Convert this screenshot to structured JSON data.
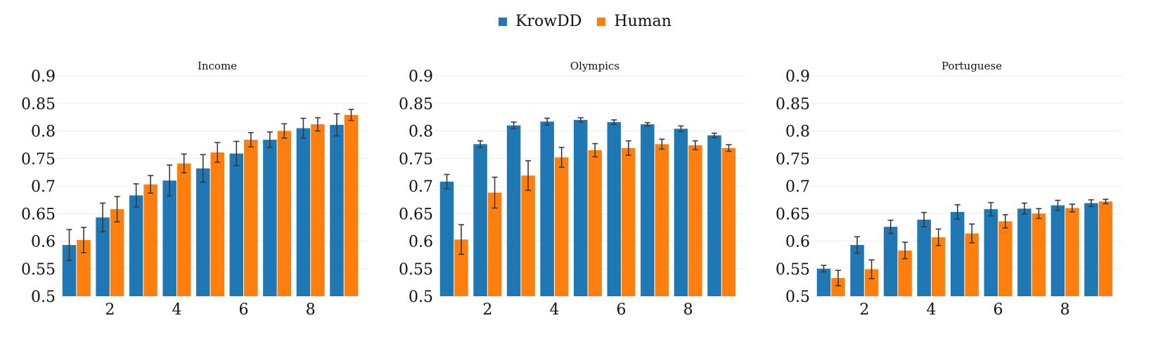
{
  "legend": {
    "items": [
      {
        "label": "KrowDD",
        "color": "#1f77b4"
      },
      {
        "label": "Human",
        "color": "#ff7f0e"
      }
    ]
  },
  "chart_data": [
    {
      "type": "bar",
      "title": "Income",
      "x": [
        1,
        2,
        3,
        4,
        5,
        6,
        7,
        8,
        9
      ],
      "xticks": [
        "2",
        "4",
        "6",
        "8"
      ],
      "ylim": [
        0.5,
        0.9
      ],
      "yticks": [
        "0.5",
        "0.55",
        "0.6",
        "0.65",
        "0.7",
        "0.75",
        "0.8",
        "0.85",
        "0.9"
      ],
      "grid": true,
      "series": [
        {
          "name": "KrowDD",
          "color": "#1f77b4",
          "values": [
            0.593,
            0.643,
            0.683,
            0.71,
            0.732,
            0.759,
            0.784,
            0.805,
            0.811
          ],
          "errors": [
            0.028,
            0.026,
            0.021,
            0.028,
            0.025,
            0.022,
            0.014,
            0.018,
            0.02
          ]
        },
        {
          "name": "Human",
          "color": "#ff7f0e",
          "values": [
            0.602,
            0.658,
            0.703,
            0.741,
            0.761,
            0.784,
            0.8,
            0.812,
            0.829
          ],
          "errors": [
            0.023,
            0.023,
            0.016,
            0.017,
            0.018,
            0.013,
            0.013,
            0.012,
            0.01
          ]
        }
      ]
    },
    {
      "type": "bar",
      "title": "Olympics",
      "x": [
        1,
        2,
        3,
        4,
        5,
        6,
        7,
        8,
        9
      ],
      "xticks": [
        "2",
        "4",
        "6",
        "8"
      ],
      "ylim": [
        0.5,
        0.9
      ],
      "yticks": [
        "0.5",
        "0.55",
        "0.6",
        "0.65",
        "0.7",
        "0.75",
        "0.8",
        "0.85",
        "0.9"
      ],
      "grid": true,
      "series": [
        {
          "name": "KrowDD",
          "color": "#1f77b4",
          "values": [
            0.708,
            0.776,
            0.81,
            0.817,
            0.82,
            0.816,
            0.812,
            0.804,
            0.792
          ],
          "errors": [
            0.013,
            0.006,
            0.006,
            0.006,
            0.004,
            0.004,
            0.003,
            0.005,
            0.004
          ]
        },
        {
          "name": "Human",
          "color": "#ff7f0e",
          "values": [
            0.603,
            0.688,
            0.719,
            0.752,
            0.765,
            0.769,
            0.776,
            0.774,
            0.769
          ],
          "errors": [
            0.027,
            0.028,
            0.027,
            0.018,
            0.012,
            0.013,
            0.009,
            0.008,
            0.006
          ]
        }
      ]
    },
    {
      "type": "bar",
      "title": "Portuguese",
      "x": [
        1,
        2,
        3,
        4,
        5,
        6,
        7,
        8,
        9
      ],
      "xticks": [
        "2",
        "4",
        "6",
        "8"
      ],
      "ylim": [
        0.5,
        0.9
      ],
      "yticks": [
        "0.5",
        "0.55",
        "0.6",
        "0.65",
        "0.7",
        "0.75",
        "0.8",
        "0.85",
        "0.9"
      ],
      "grid": true,
      "series": [
        {
          "name": "KrowDD",
          "color": "#1f77b4",
          "values": [
            0.55,
            0.593,
            0.626,
            0.639,
            0.653,
            0.658,
            0.659,
            0.665,
            0.669
          ],
          "errors": [
            0.006,
            0.015,
            0.012,
            0.013,
            0.013,
            0.012,
            0.01,
            0.009,
            0.006
          ]
        },
        {
          "name": "Human",
          "color": "#ff7f0e",
          "values": [
            0.533,
            0.549,
            0.583,
            0.607,
            0.614,
            0.636,
            0.65,
            0.66,
            0.672
          ],
          "errors": [
            0.014,
            0.017,
            0.015,
            0.015,
            0.017,
            0.012,
            0.009,
            0.007,
            0.004
          ]
        }
      ]
    }
  ]
}
